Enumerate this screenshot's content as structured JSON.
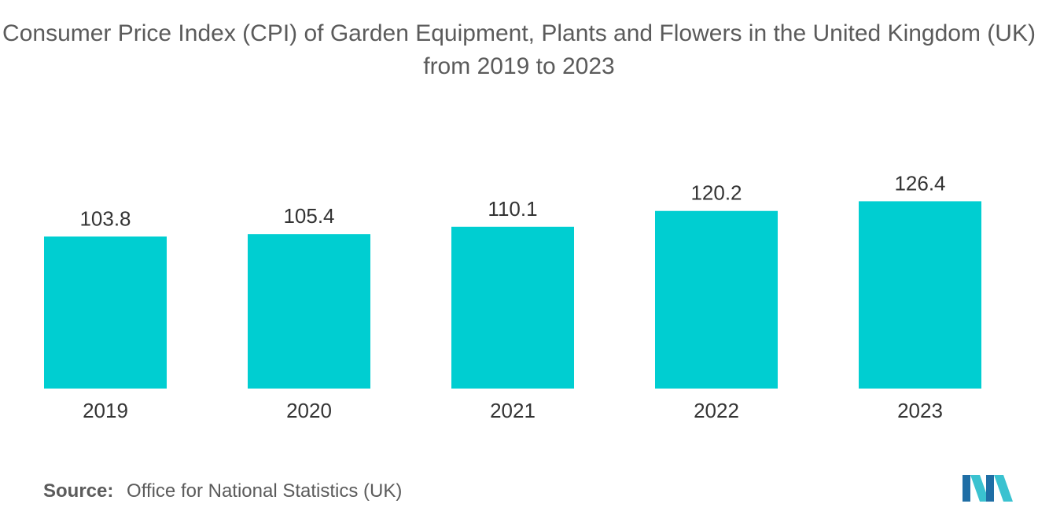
{
  "chart_data": {
    "type": "bar",
    "title": "Consumer Price Index (CPI) of Garden Equipment, Plants and Flowers in the United Kingdom (UK) from 2019 to 2023",
    "categories": [
      "2019",
      "2020",
      "2021",
      "2022",
      "2023"
    ],
    "values": [
      103.8,
      105.4,
      110.1,
      120.2,
      126.4
    ],
    "value_labels": [
      "103.8",
      "105.4",
      "110.1",
      "120.2",
      "126.4"
    ],
    "xlabel": "",
    "ylabel": "",
    "ylim": [
      0,
      130
    ],
    "grid": false,
    "bar_color": "#00ced1"
  },
  "source": {
    "label": "Source:",
    "text": "Office for National Statistics (UK)"
  },
  "logo": {
    "icon": "mordor-intelligence-logo",
    "colors": [
      "#1f6ea5",
      "#3ac2d0"
    ]
  }
}
